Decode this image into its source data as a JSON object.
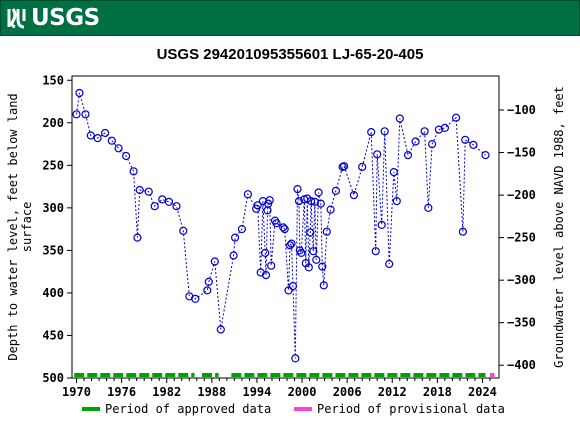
{
  "banner": {
    "logo_text": "USGS",
    "color": "#006f41"
  },
  "chart_data": {
    "type": "scatter",
    "title": "USGS 294201095355601 LJ-65-20-405",
    "ylabel_left": "Depth to water level, feet below land surface",
    "ylabel_right": "Groundwater level above NAVD 1988, feet",
    "x_ticks": [
      "1970",
      "1976",
      "1982",
      "1988",
      "1994",
      "2000",
      "2006",
      "2012",
      "2018",
      "2024"
    ],
    "xlim": [
      1969.4,
      2026.2
    ],
    "ylim_left": [
      500,
      145
    ],
    "y_ticks_left": [
      150,
      200,
      250,
      300,
      350,
      400,
      450,
      500
    ],
    "ylim_right": [
      -415,
      -60
    ],
    "y_ticks_right": [
      -100,
      -150,
      -200,
      -250,
      -300,
      -350,
      -400
    ],
    "marker_color": "#0000cc",
    "series": [
      {
        "name": "Period of approved data",
        "color": "#00a000",
        "points": [
          [
            1970.0,
            190
          ],
          [
            1970.4,
            165
          ],
          [
            1971.2,
            190
          ],
          [
            1971.9,
            215
          ],
          [
            1972.8,
            218
          ],
          [
            1973.8,
            212
          ],
          [
            1974.7,
            221
          ],
          [
            1975.6,
            230
          ],
          [
            1976.6,
            239
          ],
          [
            1977.6,
            257
          ],
          [
            1978.1,
            335
          ],
          [
            1978.4,
            279
          ],
          [
            1979.6,
            281
          ],
          [
            1980.4,
            298
          ],
          [
            1981.4,
            290
          ],
          [
            1982.3,
            293
          ],
          [
            1983.3,
            298
          ],
          [
            1984.2,
            327
          ],
          [
            1985.0,
            404
          ],
          [
            1985.8,
            407
          ],
          [
            1987.4,
            397
          ],
          [
            1987.6,
            387
          ],
          [
            1988.4,
            363
          ],
          [
            1989.2,
            443
          ],
          [
            1990.9,
            356
          ],
          [
            1991.1,
            335
          ],
          [
            1992.0,
            325
          ],
          [
            1992.8,
            284
          ],
          [
            1993.9,
            301
          ],
          [
            1994.1,
            297
          ],
          [
            1994.5,
            376
          ],
          [
            1994.8,
            292
          ],
          [
            1995.1,
            353
          ],
          [
            1995.2,
            379
          ],
          [
            1995.4,
            303
          ],
          [
            1995.5,
            295
          ],
          [
            1995.7,
            291
          ],
          [
            1995.9,
            368
          ],
          [
            1996.4,
            315
          ],
          [
            1996.6,
            318
          ],
          [
            1997.5,
            323
          ],
          [
            1997.7,
            325
          ],
          [
            1998.2,
            397
          ],
          [
            1998.4,
            344
          ],
          [
            1998.6,
            342
          ],
          [
            1998.8,
            392
          ],
          [
            1999.1,
            477
          ],
          [
            1999.4,
            278
          ],
          [
            1999.6,
            292
          ],
          [
            1999.7,
            350
          ],
          [
            1999.9,
            353
          ],
          [
            2000.3,
            290
          ],
          [
            2000.5,
            365
          ],
          [
            2000.7,
            289
          ],
          [
            2000.9,
            370
          ],
          [
            2001.1,
            329
          ],
          [
            2001.2,
            292
          ],
          [
            2001.5,
            351
          ],
          [
            2001.7,
            293
          ],
          [
            2001.9,
            361
          ],
          [
            2002.2,
            282
          ],
          [
            2002.5,
            295
          ],
          [
            2002.7,
            369
          ],
          [
            2002.9,
            391
          ],
          [
            2003.3,
            328
          ],
          [
            2003.8,
            302
          ],
          [
            2004.5,
            280
          ],
          [
            2005.4,
            252
          ],
          [
            2005.6,
            251
          ],
          [
            2006.9,
            285
          ],
          [
            2008.0,
            252
          ],
          [
            2009.2,
            211
          ],
          [
            2009.8,
            351
          ],
          [
            2010.0,
            237
          ],
          [
            2010.6,
            320
          ],
          [
            2011.0,
            210
          ],
          [
            2011.6,
            366
          ],
          [
            2012.2,
            258
          ],
          [
            2012.6,
            292
          ],
          [
            2013.0,
            195
          ],
          [
            2014.1,
            238
          ],
          [
            2015.1,
            222
          ],
          [
            2016.3,
            210
          ],
          [
            2016.8,
            300
          ],
          [
            2017.3,
            225
          ],
          [
            2018.2,
            208
          ],
          [
            2019.0,
            206
          ],
          [
            2020.5,
            194
          ],
          [
            2021.4,
            328
          ],
          [
            2021.7,
            220
          ],
          [
            2022.8,
            226
          ],
          [
            2024.4,
            238
          ]
        ]
      },
      {
        "name": "Period of provisional data",
        "color": "#ff44cc",
        "points": []
      }
    ],
    "approved_bar": [
      [
        1969.7,
        1985.7
      ],
      [
        1986.7,
        1988.9
      ],
      [
        1990.6,
        2024.4
      ]
    ],
    "provisional_bar": [
      [
        2025.0,
        2025.6
      ]
    ]
  },
  "legend": {
    "approved_label": "Period of approved data",
    "provisional_label": "Period of provisional data"
  }
}
